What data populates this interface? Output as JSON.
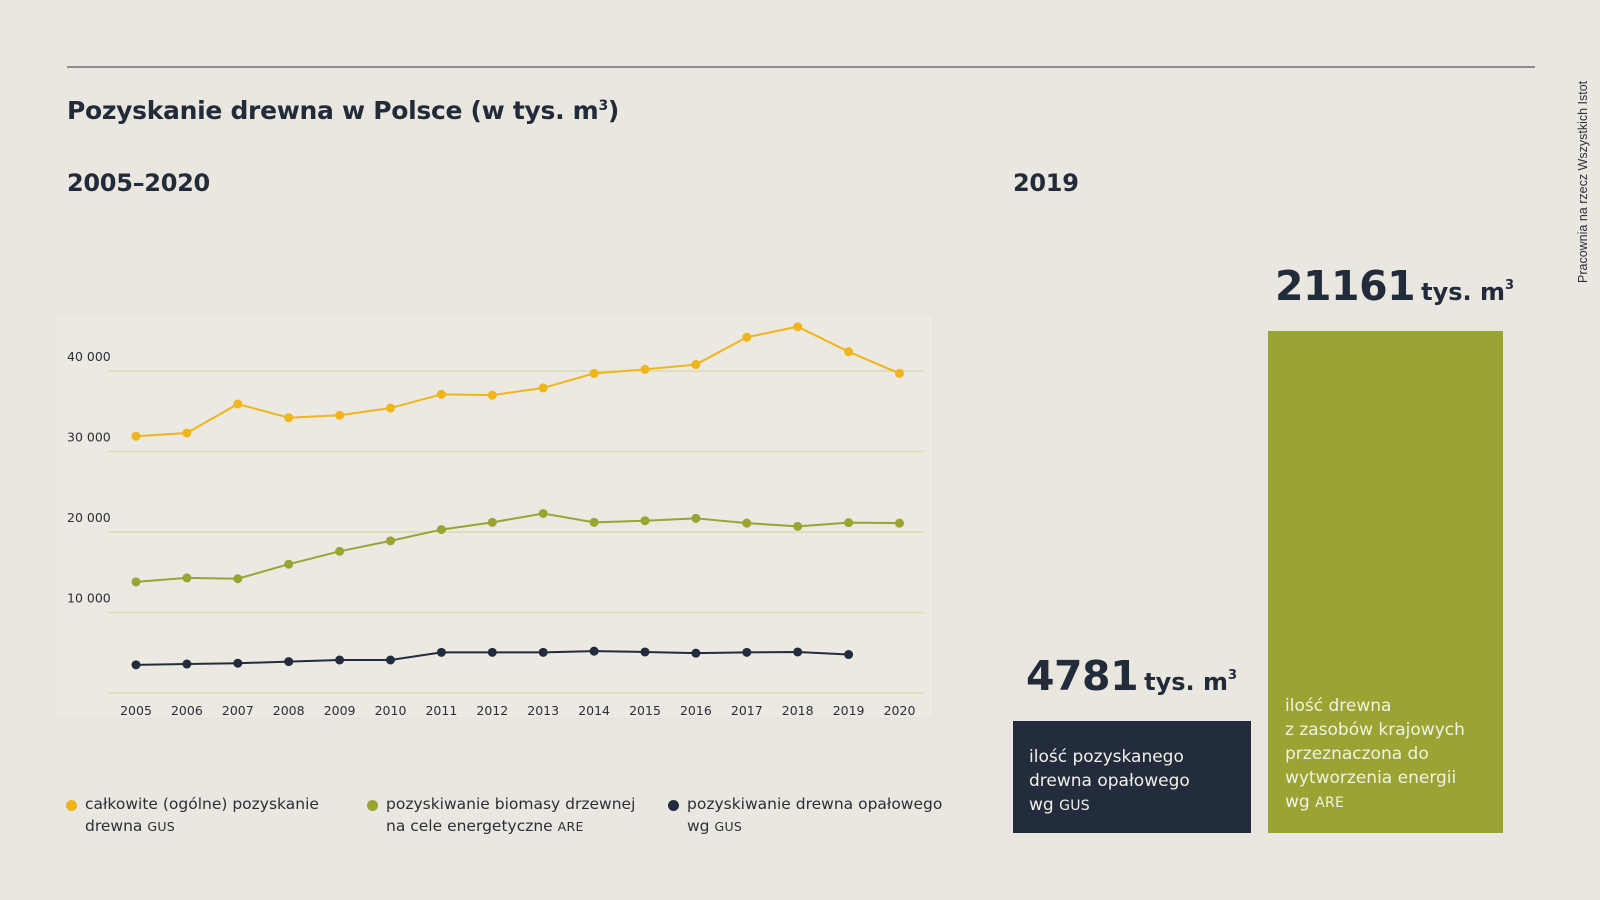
{
  "title": {
    "main": "Pozyskanie drewna w Polsce (w tys. m",
    "sup": "3",
    "close": ")"
  },
  "left_section_title": "2005–2020",
  "right_section_title": "2019",
  "side_credit": "Pracownia na rzecz Wszystkich Istot",
  "colors": {
    "background": "#e9e7df",
    "text": "#222b3a",
    "yellow": "#f0b51a",
    "green": "#9aa433",
    "dark": "#222c3c",
    "gridline": "#d6d9a0"
  },
  "chart_data": {
    "type": "line",
    "title": "Pozyskanie drewna w Polsce (w tys. m³) 2005–2020",
    "xlabel": "",
    "ylabel": "tys. m³",
    "x": [
      "2005",
      "2006",
      "2007",
      "2008",
      "2009",
      "2010",
      "2011",
      "2012",
      "2013",
      "2014",
      "2015",
      "2016",
      "2017",
      "2018",
      "2019",
      "2020"
    ],
    "ylim": [
      0,
      40000
    ],
    "yticks": [
      10000,
      20000,
      30000,
      40000
    ],
    "ytick_labels": [
      "10 000",
      "20 000",
      "30 000",
      "40 000"
    ],
    "grid": true,
    "legend_position": "bottom",
    "series": [
      {
        "name": "całkowite (ogólne) pozyskanie drewna GUS",
        "color": "#f0b51a",
        "values": [
          31900,
          32300,
          35900,
          34200,
          34500,
          35400,
          37100,
          37000,
          37900,
          39700,
          40200,
          40800,
          44200,
          45500,
          42400,
          39700
        ]
      },
      {
        "name": "pozyskiwanie biomasy drzewnej na cele energetyczne ARE",
        "color": "#9aa433",
        "values": [
          13800,
          14300,
          14200,
          16000,
          17600,
          18900,
          20300,
          21200,
          22300,
          21200,
          21400,
          21700,
          21100,
          20700,
          21161,
          21100
        ]
      },
      {
        "name": "pozyskiwanie drewna opałowego wg GUS",
        "color": "#222c3c",
        "values": [
          3500,
          3600,
          3700,
          3900,
          4100,
          4100,
          5050,
          5050,
          5050,
          5200,
          5100,
          4950,
          5050,
          5100,
          4781,
          null
        ]
      }
    ]
  },
  "legend": [
    {
      "text": "całkowite (ogólne) pozyskanie drewna",
      "abbr": "GUS"
    },
    {
      "text": "pozyskiwanie biomasy drzewnej na cele energetyczne",
      "abbr": "ARE"
    },
    {
      "text": "pozyskiwanie drewna opałowego wg",
      "abbr": "GUS"
    }
  ],
  "summary_2019": {
    "fuelwood": {
      "value": "4781",
      "unit": "tys. m",
      "unit_sup": "3",
      "lines": [
        "ilość pozyskanego",
        "drewna opałowego"
      ],
      "last_prefix": "wg",
      "abbr": "GUS"
    },
    "energy_wood": {
      "value": "21161",
      "unit": "tys. m",
      "unit_sup": "3",
      "lines": [
        "ilość drewna",
        "z zasobów krajowych",
        "przeznaczona do",
        "wytworzenia energii"
      ],
      "last_prefix": "wg",
      "abbr": "ARE"
    }
  }
}
